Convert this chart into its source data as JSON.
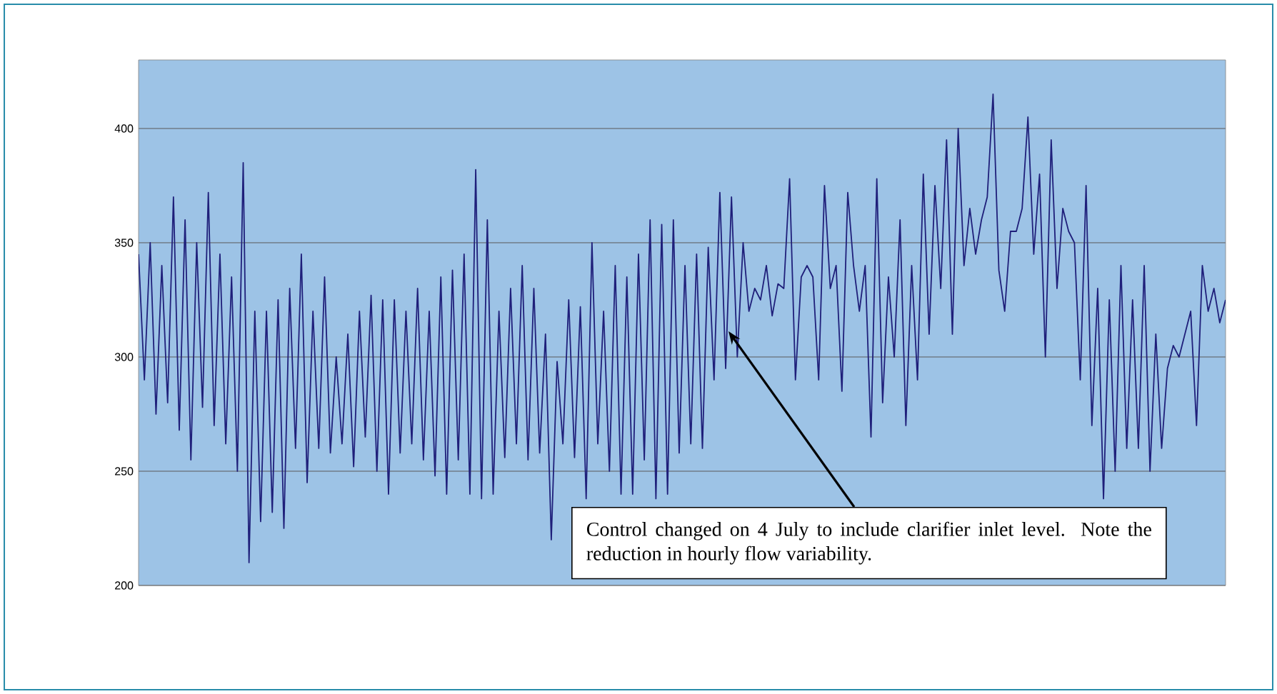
{
  "chart_data": {
    "type": "line",
    "categories": [
      null,
      null,
      null,
      null,
      null,
      null,
      null,
      null,
      null,
      null,
      null,
      null,
      null,
      null,
      null,
      null,
      null,
      null,
      null,
      null,
      null,
      null,
      null,
      null,
      null,
      null,
      null,
      null,
      null,
      null,
      null,
      null,
      null,
      null,
      null,
      null,
      null,
      null,
      null,
      null,
      null,
      null,
      null,
      null,
      null,
      null,
      null,
      null,
      null,
      null,
      null,
      null,
      null,
      null,
      null,
      null,
      null,
      null,
      null,
      null,
      null,
      null,
      null,
      null,
      null,
      null,
      null,
      null,
      null,
      null,
      null,
      null,
      null,
      null,
      null,
      null,
      null,
      null,
      null,
      null,
      null,
      null,
      null,
      null,
      null,
      null,
      null,
      null,
      null,
      null,
      null,
      null,
      null,
      null,
      null,
      null,
      null,
      null,
      null,
      null,
      null,
      null,
      null,
      null,
      null,
      null,
      null,
      null,
      null,
      null,
      null,
      null,
      null,
      null,
      null,
      null,
      null,
      null,
      null,
      null,
      null,
      null,
      null,
      null,
      null,
      null,
      null,
      null,
      null,
      null,
      null,
      null,
      null,
      null,
      null,
      null,
      null,
      null,
      null,
      null,
      null,
      null,
      null,
      null,
      null,
      null,
      null,
      null,
      null,
      null,
      null,
      null,
      null,
      null,
      null,
      null,
      null,
      null,
      null,
      null,
      null,
      null,
      null,
      null,
      null,
      null,
      null,
      null,
      null,
      null,
      null,
      null,
      null,
      null,
      null,
      null,
      null,
      null,
      null,
      null,
      null,
      null,
      null,
      null,
      null,
      null,
      null,
      null
    ],
    "values": [
      345,
      290,
      350,
      275,
      340,
      280,
      370,
      268,
      360,
      255,
      350,
      278,
      372,
      270,
      345,
      262,
      335,
      250,
      385,
      210,
      320,
      228,
      320,
      232,
      325,
      225,
      330,
      260,
      345,
      245,
      320,
      260,
      335,
      258,
      300,
      262,
      310,
      252,
      320,
      265,
      327,
      250,
      325,
      240,
      325,
      258,
      320,
      262,
      330,
      255,
      320,
      248,
      335,
      240,
      338,
      255,
      345,
      240,
      382,
      238,
      360,
      240,
      320,
      256,
      330,
      262,
      340,
      255,
      330,
      258,
      310,
      220,
      298,
      262,
      325,
      256,
      322,
      238,
      350,
      262,
      320,
      250,
      340,
      240,
      335,
      240,
      345,
      255,
      360,
      238,
      358,
      240,
      360,
      258,
      340,
      262,
      345,
      260,
      348,
      290,
      372,
      295,
      370,
      300,
      350,
      320,
      330,
      325,
      340,
      318,
      332,
      330,
      378,
      290,
      335,
      340,
      335,
      290,
      375,
      330,
      340,
      285,
      372,
      340,
      320,
      340,
      265,
      378,
      280,
      335,
      300,
      360,
      270,
      340,
      290,
      380,
      310,
      375,
      330,
      395,
      310,
      400,
      340,
      365,
      345,
      360,
      370,
      415,
      338,
      320,
      355,
      355,
      365,
      405,
      345,
      380,
      300,
      395,
      330,
      365,
      355,
      350,
      290,
      375,
      270,
      330,
      238,
      325,
      250,
      340,
      260,
      325,
      260,
      340,
      250,
      310,
      260,
      295,
      305,
      300,
      310,
      320,
      270,
      340,
      320,
      330,
      315,
      325
    ],
    "color": "#1f1f7a",
    "ylim": [
      200,
      430
    ],
    "yticks": [
      200,
      250,
      300,
      350,
      400
    ],
    "grid": "y",
    "tick_labels": "y",
    "annotations": [
      "Control changed on 4 July to include clarifier inlet level. Note the reduction in hourly flow variability."
    ]
  }
}
